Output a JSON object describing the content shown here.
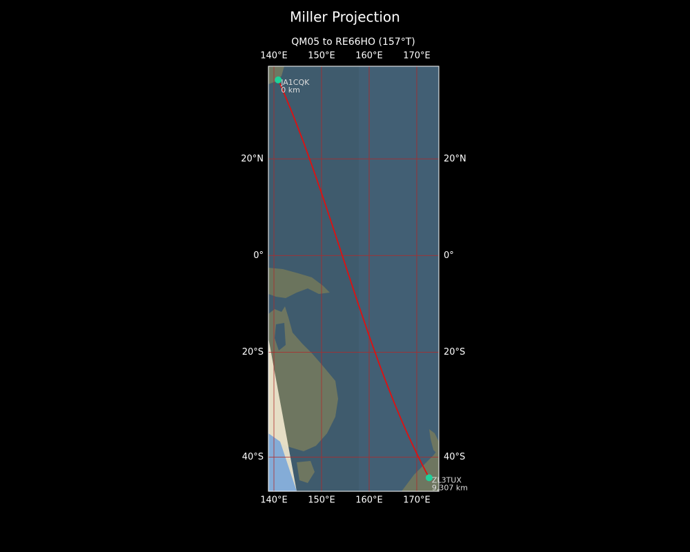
{
  "map": {
    "title": "Miller Projection",
    "subtitle": "QM05 to RE66HO (157°T)",
    "xlim": [
      138.84,
      174.64
    ],
    "ylim": [
      -45.9,
      37.8
    ],
    "lon_ticks": [
      {
        "value": 140,
        "label": "140°E"
      },
      {
        "value": 150,
        "label": "150°E"
      },
      {
        "value": 160,
        "label": "160°E"
      },
      {
        "value": 170,
        "label": "170°E"
      }
    ],
    "lat_ticks": [
      {
        "value": 20,
        "label": "20°N"
      },
      {
        "value": 0,
        "label": "0°"
      },
      {
        "value": -20,
        "label": "20°S"
      },
      {
        "value": -40,
        "label": "40°S"
      }
    ],
    "stations": [
      {
        "name": "JA1CQK",
        "distance": "0 km",
        "lon": 140.9,
        "lat": 35.3
      },
      {
        "name": "ZL3TUX",
        "distance": "9,307 km",
        "lon": 172.6,
        "lat": -43.6
      }
    ],
    "path_color": "#e01010",
    "station_color": "#1fd19a",
    "grid_color": "#b02a2a"
  }
}
